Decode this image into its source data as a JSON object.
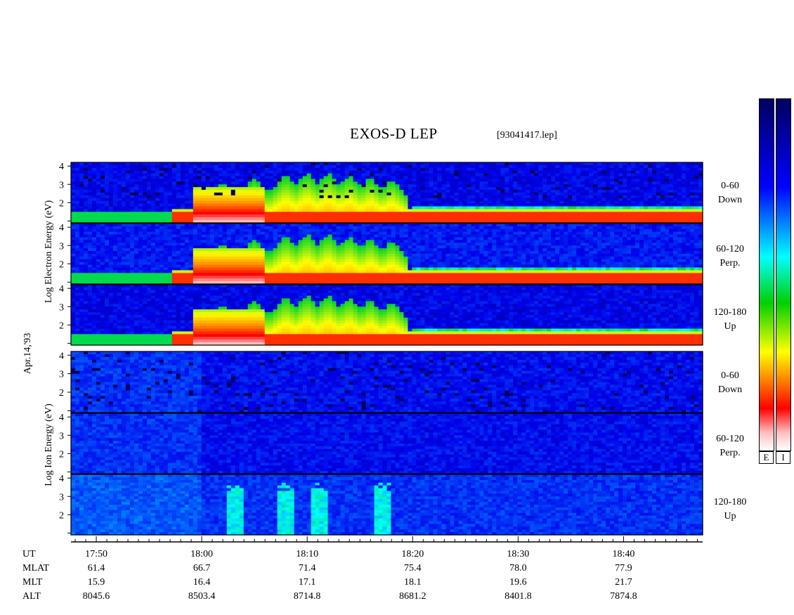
{
  "title": "EXOS-D LEP",
  "file_id": "[93041417.lep]",
  "date_label": "Apr.14,'93",
  "electron_group": {
    "ylabel_parts": [
      "Log",
      "Electron",
      "Energy",
      "(eV)"
    ],
    "ylabel": "Log Electron Energy (eV)",
    "panels": [
      {
        "pitch": "0-60",
        "dir": "Down"
      },
      {
        "pitch": "60-120",
        "dir": "Perp."
      },
      {
        "pitch": "120-180",
        "dir": "Up"
      }
    ]
  },
  "ion_group": {
    "ylabel_parts": [
      "Log",
      "Ion",
      "Energy",
      "(eV)"
    ],
    "ylabel": "Log Ion Energy (eV)",
    "panels": [
      {
        "pitch": "0-60",
        "dir": "Down"
      },
      {
        "pitch": "60-120",
        "dir": "Perp."
      },
      {
        "pitch": "120-180",
        "dir": "Up"
      }
    ]
  },
  "orbit_rows": [
    {
      "name": "UT",
      "values": [
        "17:50",
        "18:00",
        "18:10",
        "18:20",
        "18:30",
        "18:40"
      ]
    },
    {
      "name": "MLAT",
      "values": [
        "61.4",
        "66.7",
        "71.4",
        "75.4",
        "78.0",
        "77.9"
      ]
    },
    {
      "name": "MLT",
      "values": [
        "15.9",
        "16.4",
        "17.1",
        "18.1",
        "19.6",
        "21.7"
      ]
    },
    {
      "name": "ALT",
      "values": [
        "8045.6",
        "8503.4",
        "8714.8",
        "8681.2",
        "8401.8",
        "7874.8"
      ]
    }
  ],
  "colorbar_labels": [
    "E",
    "I"
  ],
  "chart_data": {
    "type": "heatmap",
    "title": "EXOS-D LEP",
    "x_ticks": [
      "17:50",
      "18:00",
      "18:10",
      "18:20",
      "18:30",
      "18:40"
    ],
    "x_range_minutes_after_1740": [
      7.6,
      67.5
    ],
    "y_ticks": [
      1,
      2,
      3,
      4
    ],
    "y_range": [
      0.9,
      4.2
    ],
    "electron_features": {
      "low_energy_band_log_eV": 1.3,
      "intense_region_start": "17:57",
      "inverted_v_structures": [
        "18:02",
        "18:05",
        "18:08",
        "18:10",
        "18:12",
        "18:14",
        "18:16",
        "18:18"
      ],
      "peak_log_eV": 3.7
    },
    "ion_features": {
      "upflow_bursts": [
        "18:03",
        "18:08",
        "18:11",
        "18:17"
      ],
      "upflow_panel": "120-180 Up"
    },
    "colorbar": [
      "#ffffff",
      "#ff0000",
      "#ffff00",
      "#00c000",
      "#00ffff",
      "#0000ff",
      "#000080"
    ]
  }
}
